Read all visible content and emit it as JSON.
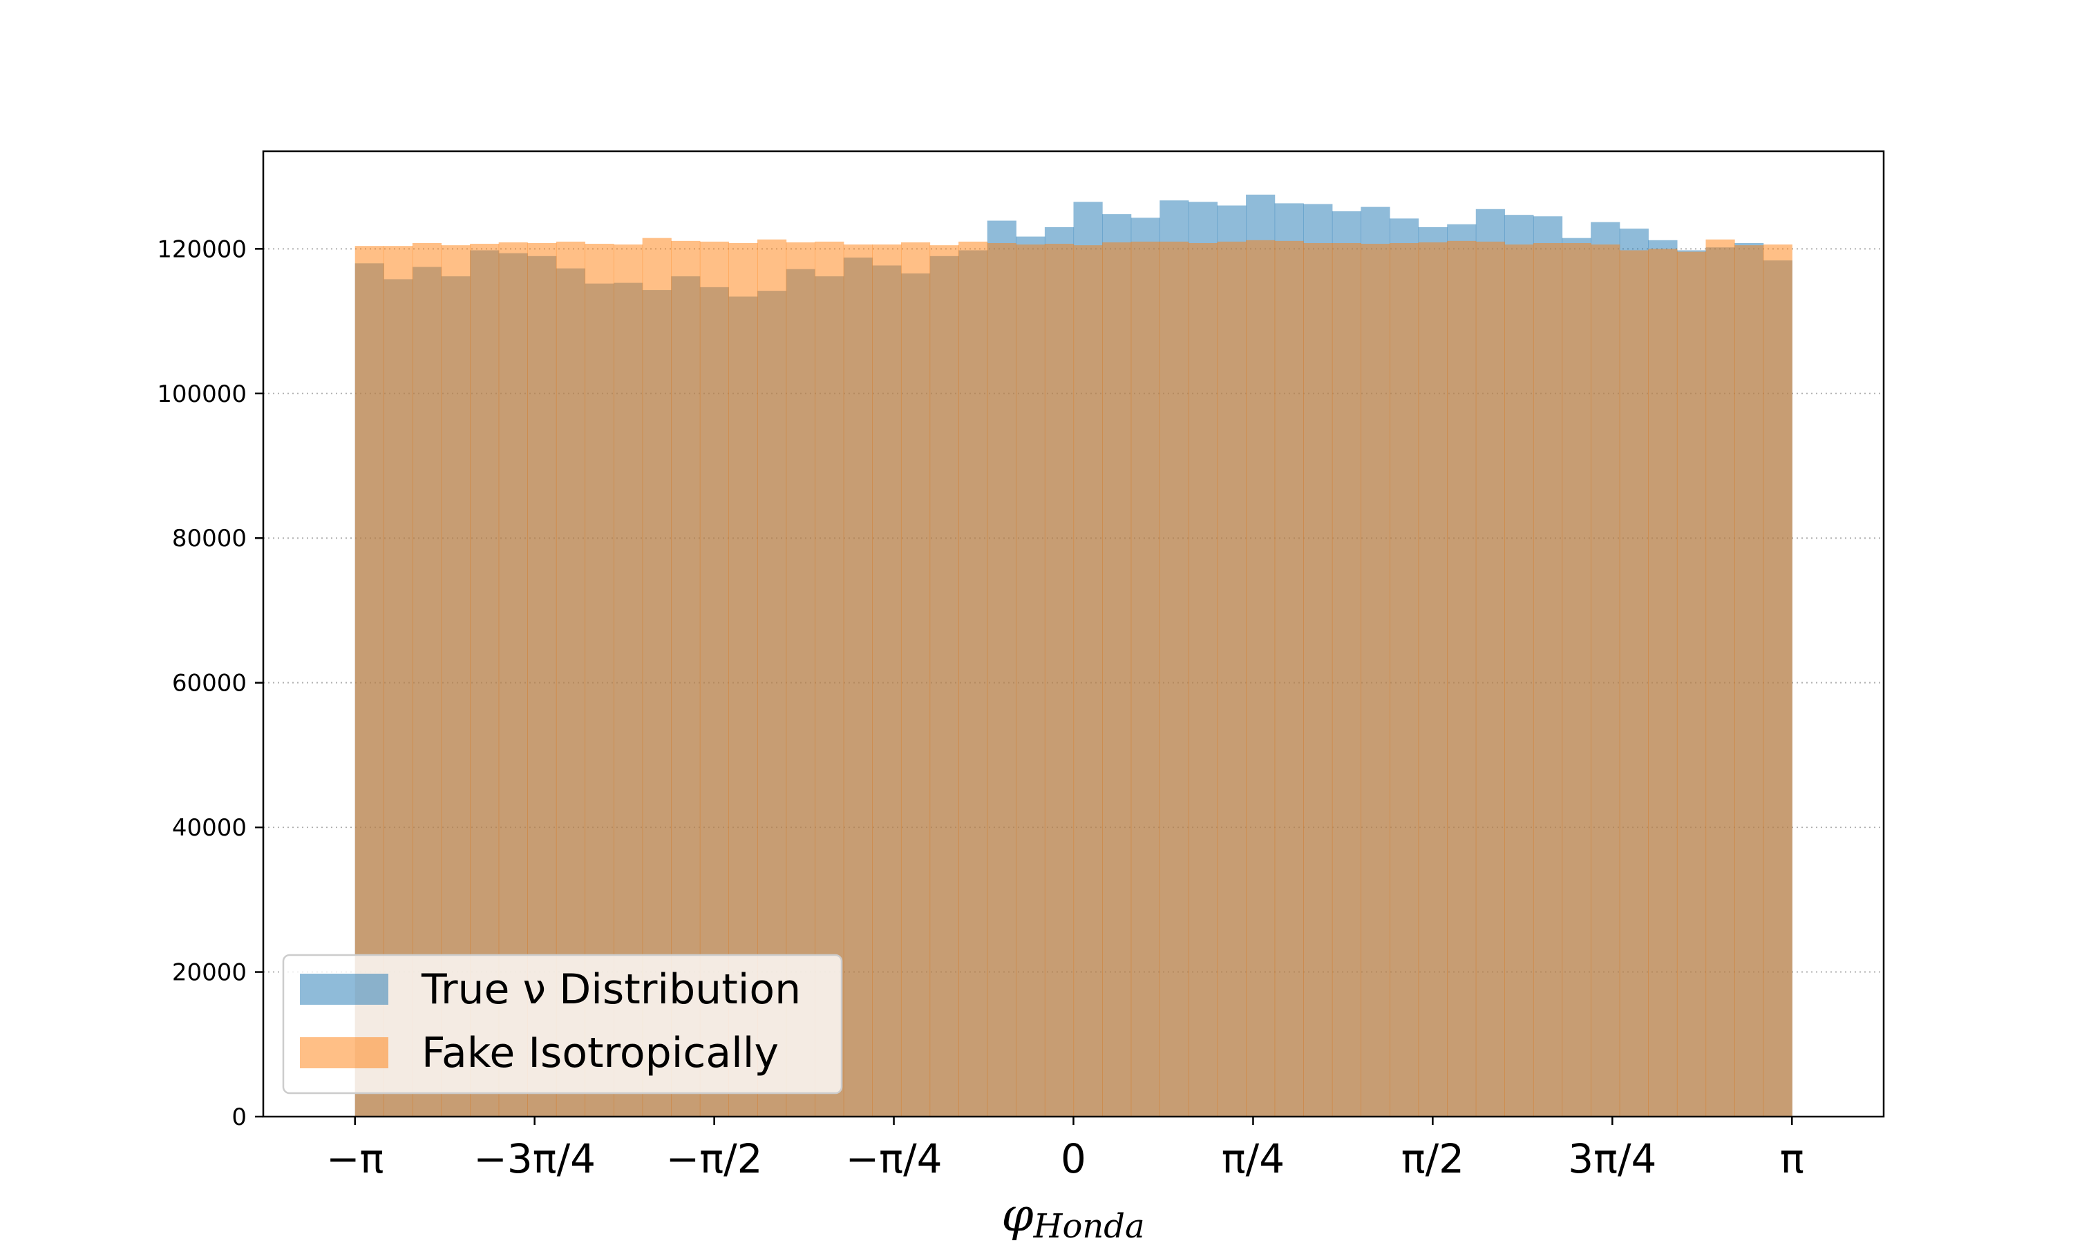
{
  "chart_data": {
    "type": "bar",
    "subtype": "overlaid-histogram",
    "title": "",
    "xlabel": "φ",
    "xlabel_subscript": "Honda",
    "ylabel": "",
    "xlim": [
      -3.5426,
      3.5426
    ],
    "ylim": [
      0,
      133500
    ],
    "bins": 50,
    "bin_range": [
      -3.14159,
      3.14159
    ],
    "grid": "y dotted",
    "legend_placement": "lower-left",
    "xticks": [
      {
        "value": -3.14159,
        "label": "−π"
      },
      {
        "value": -2.35619,
        "label": "−3π/4"
      },
      {
        "value": -1.5708,
        "label": "−π/2"
      },
      {
        "value": -0.7854,
        "label": "−π/4"
      },
      {
        "value": 0,
        "label": "0"
      },
      {
        "value": 0.7854,
        "label": "π/4"
      },
      {
        "value": 1.5708,
        "label": "π/2"
      },
      {
        "value": 2.35619,
        "label": "3π/4"
      },
      {
        "value": 3.14159,
        "label": "π"
      }
    ],
    "yticks": [
      {
        "value": 0,
        "label": "0"
      },
      {
        "value": 20000,
        "label": "20000"
      },
      {
        "value": 40000,
        "label": "40000"
      },
      {
        "value": 60000,
        "label": "60000"
      },
      {
        "value": 80000,
        "label": "80000"
      },
      {
        "value": 100000,
        "label": "100000"
      },
      {
        "value": 120000,
        "label": "120000"
      }
    ],
    "series": [
      {
        "name": "True ν Distribution",
        "color": "#1f77b4",
        "alpha": 0.5,
        "values": [
          118000,
          115800,
          117500,
          116200,
          119800,
          119400,
          119000,
          117300,
          115200,
          115300,
          114300,
          116200,
          114700,
          113400,
          114200,
          117200,
          116200,
          118800,
          117700,
          116600,
          119000,
          119800,
          123900,
          121700,
          123000,
          126500,
          124800,
          124300,
          126700,
          126500,
          126000,
          127500,
          126300,
          126200,
          125200,
          125800,
          124200,
          123000,
          123400,
          125500,
          124700,
          124500,
          121500,
          123700,
          122800,
          121200,
          119800,
          120200,
          120800,
          118400
        ]
      },
      {
        "name": "Fake Isotropically",
        "color": "#ff7f0e",
        "alpha": 0.5,
        "values": [
          120400,
          120400,
          120800,
          120500,
          120700,
          120900,
          120800,
          121000,
          120700,
          120600,
          121500,
          121100,
          121000,
          120800,
          121300,
          120900,
          121000,
          120600,
          120600,
          120900,
          120500,
          121000,
          120800,
          120600,
          120700,
          120500,
          120900,
          121000,
          121000,
          120800,
          121000,
          121200,
          121100,
          120800,
          120800,
          120700,
          120800,
          120900,
          121100,
          121000,
          120600,
          120800,
          120800,
          120600,
          119800,
          120000,
          119600,
          121300,
          120500,
          120600
        ]
      }
    ]
  }
}
